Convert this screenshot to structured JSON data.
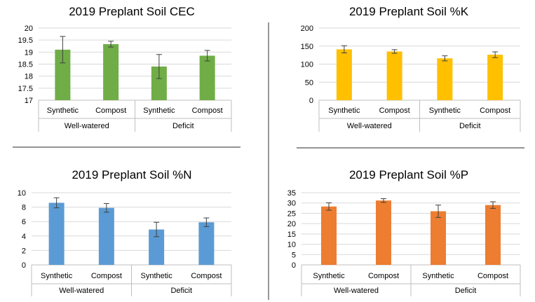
{
  "chart_data": [
    {
      "type": "bar",
      "title": "2019 Preplant Soil CEC",
      "categories": [
        "Synthetic",
        "Compost",
        "Synthetic",
        "Compost"
      ],
      "groups": [
        "Well-watered",
        "Deficit"
      ],
      "values": [
        19.1,
        19.33,
        18.4,
        18.85
      ],
      "errors": [
        0.55,
        0.12,
        0.5,
        0.22
      ],
      "ylim": [
        17,
        20
      ],
      "yticks": [
        "17",
        "17.5",
        "18",
        "18.5",
        "19",
        "19.5",
        "20"
      ],
      "grid": true,
      "color": "#70ad47"
    },
    {
      "type": "bar",
      "title": "2019 Preplant Soil %K",
      "categories": [
        "Synthetic",
        "Compost",
        "Synthetic",
        "Compost"
      ],
      "groups": [
        "Well-watered",
        "Deficit"
      ],
      "values": [
        141,
        135,
        116,
        126
      ],
      "errors": [
        10,
        5,
        7,
        8
      ],
      "ylim": [
        0,
        200
      ],
      "yticks": [
        "0",
        "50",
        "100",
        "150",
        "200"
      ],
      "grid": true,
      "color": "#ffc000"
    },
    {
      "type": "bar",
      "title": "2019 Preplant Soil %N",
      "categories": [
        "Synthetic",
        "Compost",
        "Synthetic",
        "Compost"
      ],
      "groups": [
        "Well-watered",
        "Deficit"
      ],
      "values": [
        8.6,
        7.9,
        4.9,
        5.9
      ],
      "errors": [
        0.7,
        0.6,
        1.0,
        0.6
      ],
      "ylim": [
        0,
        10
      ],
      "yticks": [
        "0",
        "2",
        "4",
        "6",
        "8",
        "10"
      ],
      "grid": true,
      "color": "#5b9bd5"
    },
    {
      "type": "bar",
      "title": "2019 Preplant Soil %P",
      "categories": [
        "Synthetic",
        "Compost",
        "Synthetic",
        "Compost"
      ],
      "groups": [
        "Well-watered",
        "Deficit"
      ],
      "values": [
        28.3,
        31.2,
        26.0,
        29.0
      ],
      "errors": [
        1.8,
        0.9,
        3.0,
        1.6
      ],
      "ylim": [
        0,
        35
      ],
      "yticks": [
        "0",
        "5",
        "10",
        "15",
        "20",
        "25",
        "30",
        "35"
      ],
      "grid": true,
      "color": "#ed7d31"
    }
  ]
}
